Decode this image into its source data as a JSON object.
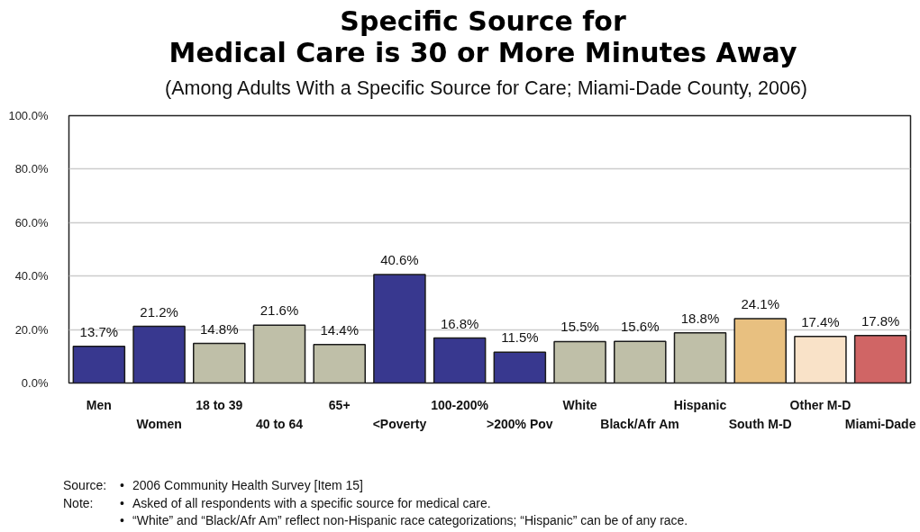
{
  "chart_data": {
    "type": "bar",
    "title": "Specific Source for\nMedical Care is 30 or More Minutes Away",
    "subtitle": "(Among Adults With a Specific Source for Care; Miami-Dade County, 2006)",
    "categories": [
      "Men",
      "Women",
      "18 to 39",
      "40 to 64",
      "65+",
      "<Poverty",
      "100-200%",
      ">200% Pov",
      "White",
      "Black/Afr Am",
      "Hispanic",
      "South M-D",
      "Other M-D",
      "Miami-Dade"
    ],
    "values": [
      13.7,
      21.2,
      14.8,
      21.6,
      14.4,
      40.6,
      16.8,
      11.5,
      15.5,
      15.6,
      18.8,
      24.1,
      17.4,
      17.8
    ],
    "value_labels": [
      "13.7%",
      "21.2%",
      "14.8%",
      "21.6%",
      "14.4%",
      "40.6%",
      "16.8%",
      "11.5%",
      "15.5%",
      "15.6%",
      "18.8%",
      "24.1%",
      "17.4%",
      "17.8%"
    ],
    "colors": [
      "#38388f",
      "#38388f",
      "#bfbfa8",
      "#bfbfa8",
      "#bfbfa8",
      "#38388f",
      "#38388f",
      "#38388f",
      "#bfbfa8",
      "#bfbfa8",
      "#bfbfa8",
      "#e8c080",
      "#f9e2c8",
      "#d06565"
    ],
    "ylim": [
      0,
      100
    ],
    "yticks": [
      {
        "value": 0,
        "label": "0.0%"
      },
      {
        "value": 20,
        "label": "20.0%"
      },
      {
        "value": 40,
        "label": "40.0%"
      },
      {
        "value": 60,
        "label": "60.0%"
      },
      {
        "value": 80,
        "label": "80.0%"
      },
      {
        "value": 100,
        "label": "100.0%"
      }
    ],
    "grid": "y",
    "annotations": [
      "Source: • 2006 Community Health Survey [Item 15]",
      "Note: • Asked of all respondents with a specific source for medical care.",
      "• “White” and “Black/Afr Am” reflect non-Hispanic race categorizations; “Hispanic” can be of any race."
    ]
  }
}
